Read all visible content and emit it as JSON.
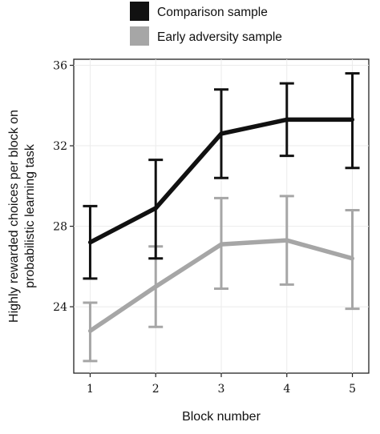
{
  "chart_data": {
    "type": "line",
    "xlabel": "Block number",
    "ylabel": "Highly rewarded choices per block on probabilistic learning task",
    "ylabel_lines": [
      "Highly rewarded choices per block on",
      "probabilistic learning task"
    ],
    "x": [
      1,
      2,
      3,
      4,
      5
    ],
    "xlim": [
      0.75,
      5.25
    ],
    "ylim": [
      20.7,
      36.3
    ],
    "y_ticks": [
      24,
      28,
      32,
      36
    ],
    "x_ticks": [
      1,
      2,
      3,
      4,
      5
    ],
    "grid": true,
    "legend_position": "top",
    "series": [
      {
        "name": "Comparison sample",
        "color": "#111111",
        "values": [
          27.2,
          28.9,
          32.6,
          33.3,
          33.3
        ],
        "error_low": [
          25.4,
          26.4,
          30.4,
          31.5,
          30.9
        ],
        "error_high": [
          29.0,
          31.3,
          34.8,
          35.1,
          35.6
        ]
      },
      {
        "name": "Early adversity sample",
        "color": "#a6a6a6",
        "values": [
          22.8,
          25.0,
          27.1,
          27.3,
          26.4
        ],
        "error_low": [
          21.3,
          23.0,
          24.9,
          25.1,
          23.9
        ],
        "error_high": [
          24.2,
          27.0,
          29.4,
          29.5,
          28.8
        ]
      }
    ]
  }
}
